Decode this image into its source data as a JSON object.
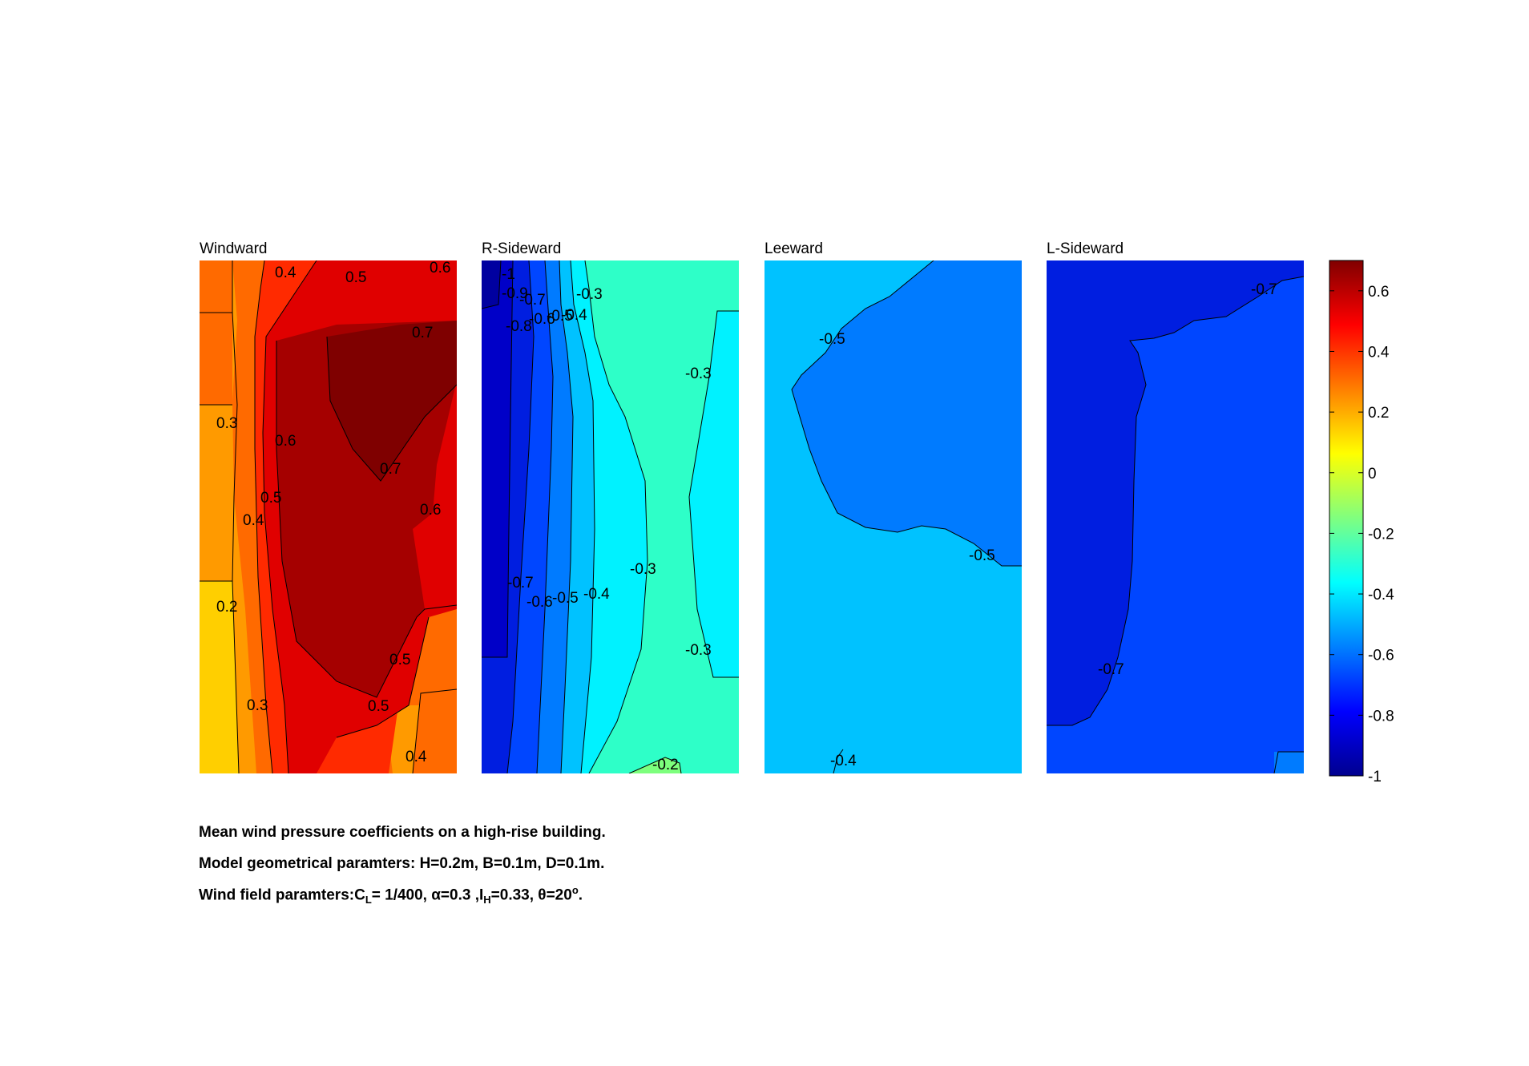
{
  "chart_data": [
    {
      "type": "heatmap",
      "title": "Windward",
      "contour_labels": [
        "0.4",
        "0.5",
        "0.6",
        "0.7",
        "0.3",
        "0.6",
        "0.7",
        "0.5",
        "0.4",
        "0.6",
        "0.2",
        "0.5",
        "0.3",
        "0.5",
        "0.4"
      ]
    },
    {
      "type": "heatmap",
      "title": "R-Sideward",
      "contour_labels": [
        "-1",
        "-0.9",
        "-0.7",
        "-0.3",
        "-0.8",
        "-0.6",
        "-0.5",
        "-0.4",
        "-0.3",
        "-0.3",
        "-0.7",
        "-0.6",
        "-0.5",
        "-0.4",
        "-0.3",
        "-0.2"
      ]
    },
    {
      "type": "heatmap",
      "title": "Leeward",
      "contour_labels": [
        "-0.5",
        "-0.5",
        "-0.4"
      ]
    },
    {
      "type": "heatmap",
      "title": "L-Sideward",
      "contour_labels": [
        "-0.7",
        "-0.7"
      ]
    }
  ],
  "colorbar": {
    "min": -1,
    "max": 0.7,
    "ticks": [
      "0.6",
      "0.4",
      "0.2",
      "0",
      "-0.2",
      "-0.4",
      "-0.6",
      "-0.8",
      "-1"
    ],
    "colormap": "jet"
  },
  "caption": {
    "line1": "Mean wind pressure coefficients on a high-rise building.",
    "line2": "Model geometrical paramters: H=0.2m, B=0.1m, D=0.1m.",
    "line3_prefix": "Wind field paramters:C",
    "line3_sub1": "L",
    "line3_mid1": "= 1/400, α=0.3 ,I",
    "line3_sub2": "H",
    "line3_mid2": "=0.33, θ=20",
    "line3_sup": "o",
    "line3_end": "."
  },
  "colors": {
    "c_dark_red": "#7f0000",
    "c_red1": "#a50000",
    "c_red2": "#e00000",
    "c_red3": "#ff2a00",
    "c_orange": "#ff6a00",
    "c_orange2": "#ff9a00",
    "c_yellow": "#ffcf00",
    "c_cyan_green": "#2effc8",
    "c_cyan": "#00f2ff",
    "c_light_blue": "#00c2ff",
    "c_blue1": "#007bff",
    "c_blue2": "#0046ff",
    "c_blue3": "#001ee0",
    "c_navy": "#0000a0",
    "c_green": "#7dff7d"
  }
}
